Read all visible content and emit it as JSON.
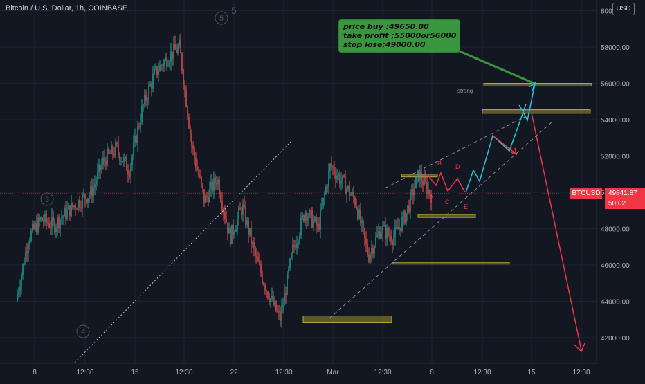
{
  "header": {
    "symbol_title": "Bitcoin / U.S. Dollar, 1h, COINBASE",
    "currency_button": "USD"
  },
  "price_badge": {
    "ticker": "BTCUSD",
    "price": "49841.87",
    "countdown": "50:02"
  },
  "note": {
    "line1": "price buy :49650.00",
    "line2": "take profit :55000or56000",
    "line3": "stop lose:49000.00"
  },
  "chart_data": {
    "type": "candlestick",
    "x_ticks": [
      "8",
      "12:30",
      "15",
      "12:30",
      "22",
      "12:30",
      "Mar",
      "12:30",
      "8",
      "12:30",
      "15",
      "12:30"
    ],
    "y_ticks": [
      "42000.00",
      "44000.00",
      "46000.00",
      "48000.00",
      "50000.00",
      "52000.00",
      "54000.00",
      "56000.00",
      "58000.00",
      "60000.00"
    ],
    "y_tick_values": [
      42000,
      44000,
      46000,
      48000,
      50000,
      52000,
      54000,
      56000,
      58000,
      60000
    ],
    "ylim": [
      40700,
      60550
    ],
    "grid": true,
    "last_price": 49841.87,
    "price_path": [
      44000,
      47500,
      48500,
      48200,
      48900,
      49500,
      50000,
      51800,
      52400,
      51200,
      54500,
      56500,
      57400,
      58000,
      52500,
      49500,
      50800,
      47500,
      49200,
      46500,
      44500,
      43000,
      46800,
      49000,
      48000,
      51500,
      50500,
      49500,
      46500,
      48000,
      47500,
      48800,
      51000,
      49841
    ],
    "colors": {
      "up": "#26a69a",
      "down": "#ef5350",
      "background": "#131722",
      "grid": "#1f2330",
      "projection_up": "#26c6da",
      "projection_down": "#f23645",
      "zone": "#b8a93a",
      "label": "#f23645"
    },
    "wave_labels": [
      "A",
      "B",
      "C",
      "D",
      "E"
    ],
    "wave_circle_labels": [
      "5",
      "3",
      "4"
    ],
    "wave_numeral": "5",
    "zone_note": "strong",
    "zones_price": [
      {
        "from": 55850,
        "to": 56000
      },
      {
        "from": 54350,
        "to": 54550
      },
      {
        "from": 50850,
        "to": 51000
      },
      {
        "from": 48620,
        "to": 48780
      },
      {
        "from": 46050,
        "to": 46150
      },
      {
        "from": 42820,
        "to": 43200
      }
    ]
  }
}
